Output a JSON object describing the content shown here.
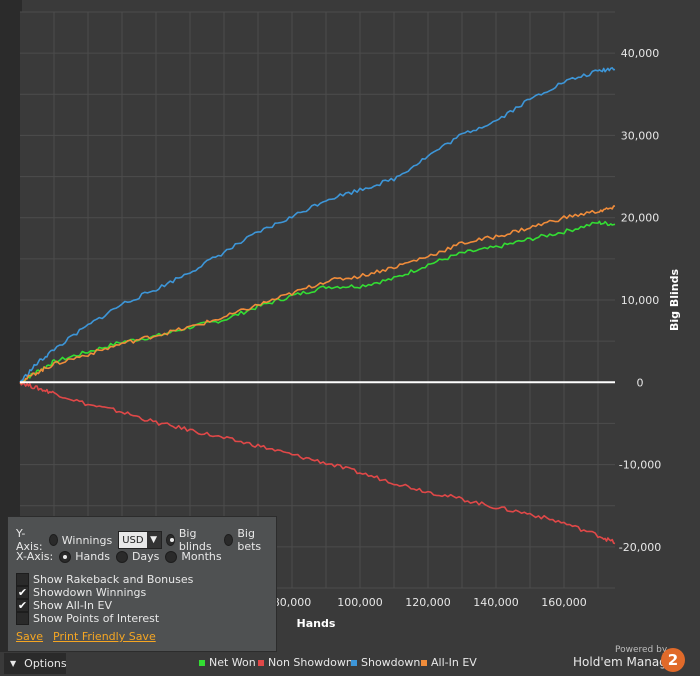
{
  "chart_data": {
    "type": "line",
    "xlabel": "Hands",
    "ylabel": "Big Blinds",
    "xlim": [
      0,
      175000
    ],
    "ylim": [
      -25000,
      45000
    ],
    "x_ticks": [
      "80,000",
      "100,000",
      "120,000",
      "140,000",
      "160,000"
    ],
    "x_tick_values": [
      80000,
      100000,
      120000,
      140000,
      160000
    ],
    "y_ticks": [
      "40,000",
      "30,000",
      "20,000",
      "10,000",
      "0",
      "-10,000",
      "-20,000"
    ],
    "y_tick_values": [
      40000,
      30000,
      20000,
      10000,
      0,
      -10000,
      -20000
    ],
    "grid": true,
    "legend_placement": "bottom",
    "x": [
      0,
      5000,
      10000,
      20000,
      30000,
      40000,
      50000,
      60000,
      70000,
      80000,
      90000,
      100000,
      110000,
      120000,
      130000,
      140000,
      150000,
      160000,
      170000,
      175000
    ],
    "series": [
      {
        "name": "Net Won",
        "color": "#33dd33",
        "values": [
          0,
          1300,
          2500,
          3700,
          4900,
          5600,
          6700,
          7600,
          9200,
          10500,
          11600,
          11700,
          12600,
          14300,
          15700,
          16400,
          17400,
          18300,
          19400,
          19200
        ]
      },
      {
        "name": "Non Showdown",
        "color": "#e04848",
        "values": [
          0,
          -700,
          -1300,
          -2700,
          -3600,
          -4900,
          -5800,
          -6800,
          -7700,
          -8800,
          -9800,
          -11000,
          -12200,
          -13300,
          -14200,
          -15200,
          -16000,
          -17100,
          -18600,
          -19500
        ]
      },
      {
        "name": "Showdown",
        "color": "#3d96d8",
        "values": [
          0,
          2300,
          4000,
          6900,
          9500,
          11300,
          13400,
          15800,
          18200,
          20100,
          22200,
          23400,
          24700,
          27500,
          30100,
          31800,
          34400,
          36500,
          37800,
          38200
        ]
      },
      {
        "name": "All-In EV",
        "color": "#f08c3a",
        "values": [
          0,
          1200,
          2200,
          3400,
          4700,
          5700,
          6700,
          7900,
          9400,
          10800,
          12300,
          12900,
          14000,
          15300,
          16900,
          17700,
          18800,
          20000,
          20800,
          21200
        ]
      }
    ]
  },
  "options": {
    "y_axis_label": "Y-Axis:",
    "winnings_label": "Winnings",
    "currency_value": "USD",
    "big_blinds_label": "Big blinds",
    "big_bets_label": "Big bets",
    "x_axis_label": "X-Axis:",
    "hands_label": "Hands",
    "days_label": "Days",
    "months_label": "Months",
    "show_rakeback_label": "Show Rakeback and Bonuses",
    "showdown_winnings_label": "Showdown Winnings",
    "show_allin_ev_label": "Show All-In EV",
    "show_poi_label": "Show Points of Interest",
    "save_label": "Save",
    "print_save_label": "Print Friendly Save",
    "options_tab_label": "Options"
  },
  "branding": {
    "powered_by": "Powered by",
    "product": "Hold'em Manager",
    "logo_digit": "2"
  }
}
